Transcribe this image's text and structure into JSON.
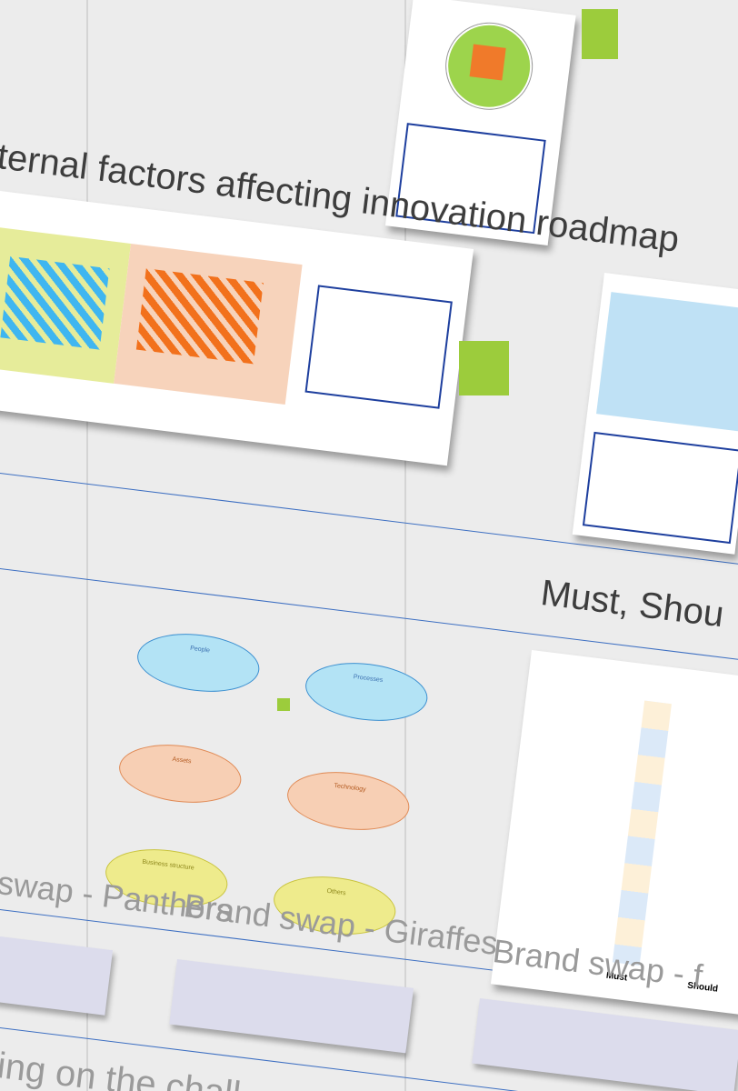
{
  "frames": {
    "external_factors": {
      "title": "ternal factors affecting innovation roadmap"
    },
    "prioritisation": {
      "title": "Must, Shou",
      "columns": [
        "Must",
        "Should"
      ]
    }
  },
  "lenses": [
    "People",
    "Processes",
    "Assets",
    "Technology",
    "Business structure",
    "Others"
  ],
  "brand_swaps": [
    "swap - Panthers",
    "Brand swap - Giraffes",
    "Brand swap - f"
  ],
  "footer": "ing on the chall"
}
